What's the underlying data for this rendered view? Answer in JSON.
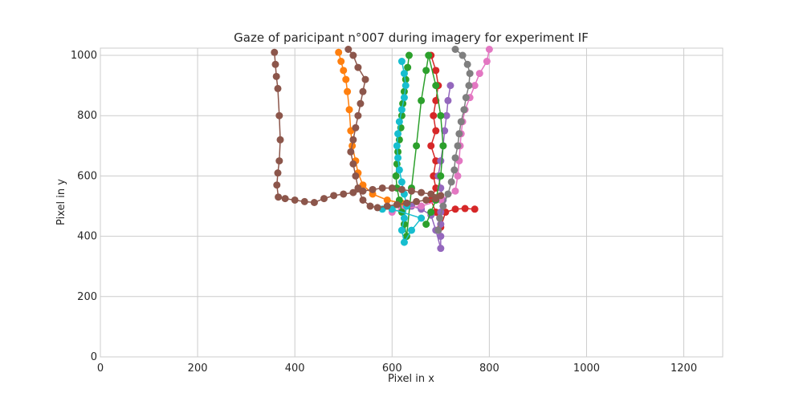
{
  "chart_data": {
    "type": "scatter",
    "title": "Gaze of paricipant n°007 during imagery for experiment IF",
    "xlabel": "Pixel in x",
    "ylabel": "Pixel in y",
    "xlim": [
      0,
      1280
    ],
    "ylim": [
      0,
      1024
    ],
    "xticks": [
      "0",
      "200",
      "400",
      "600",
      "800",
      "1000",
      "1200"
    ],
    "yticks": [
      "0",
      "200",
      "400",
      "600",
      "800",
      "1000"
    ],
    "grid": true,
    "legend": "none",
    "colors": [
      "#ff7f0e",
      "#d62728",
      "#9467bd",
      "#e377c2",
      "#7f7f7f",
      "#2ca02c",
      "#17becf",
      "#8c564b"
    ],
    "series": [
      {
        "color": "#ff7f0e",
        "points": [
          [
            490,
            1010
          ],
          [
            495,
            980
          ],
          [
            500,
            950
          ],
          [
            505,
            920
          ],
          [
            508,
            880
          ],
          [
            512,
            820
          ],
          [
            515,
            750
          ],
          [
            518,
            700
          ],
          [
            525,
            650
          ],
          [
            530,
            610
          ],
          [
            540,
            570
          ],
          [
            560,
            540
          ],
          [
            590,
            520
          ],
          [
            620,
            510
          ],
          [
            640,
            500
          ]
        ]
      },
      {
        "color": "#d62728",
        "points": [
          [
            680,
            1000
          ],
          [
            690,
            950
          ],
          [
            695,
            900
          ],
          [
            690,
            850
          ],
          [
            685,
            800
          ],
          [
            690,
            750
          ],
          [
            680,
            700
          ],
          [
            690,
            650
          ],
          [
            685,
            600
          ],
          [
            690,
            560
          ],
          [
            680,
            520
          ],
          [
            690,
            480
          ],
          [
            700,
            430
          ],
          [
            710,
            480
          ],
          [
            730,
            490
          ],
          [
            750,
            492
          ],
          [
            770,
            490
          ]
        ]
      },
      {
        "color": "#9467bd",
        "points": [
          [
            720,
            900
          ],
          [
            715,
            850
          ],
          [
            712,
            800
          ],
          [
            708,
            750
          ],
          [
            705,
            700
          ],
          [
            700,
            650
          ],
          [
            695,
            600
          ],
          [
            700,
            560
          ],
          [
            705,
            520
          ],
          [
            700,
            480
          ],
          [
            700,
            440
          ],
          [
            700,
            400
          ],
          [
            700,
            360
          ],
          [
            690,
            420
          ],
          [
            680,
            470
          ],
          [
            660,
            490
          ],
          [
            640,
            500
          ]
        ]
      },
      {
        "color": "#e377c2",
        "points": [
          [
            800,
            1020
          ],
          [
            795,
            980
          ],
          [
            780,
            940
          ],
          [
            770,
            900
          ],
          [
            760,
            860
          ],
          [
            750,
            820
          ],
          [
            745,
            780
          ],
          [
            742,
            740
          ],
          [
            740,
            700
          ],
          [
            738,
            650
          ],
          [
            735,
            600
          ],
          [
            730,
            550
          ],
          [
            700,
            520
          ],
          [
            660,
            500
          ],
          [
            620,
            490
          ],
          [
            600,
            480
          ]
        ]
      },
      {
        "color": "#7f7f7f",
        "points": [
          [
            730,
            1020
          ],
          [
            745,
            1000
          ],
          [
            755,
            970
          ],
          [
            760,
            940
          ],
          [
            758,
            900
          ],
          [
            752,
            860
          ],
          [
            748,
            820
          ],
          [
            742,
            780
          ],
          [
            738,
            740
          ],
          [
            735,
            700
          ],
          [
            730,
            660
          ],
          [
            728,
            620
          ],
          [
            722,
            580
          ],
          [
            715,
            540
          ],
          [
            705,
            500
          ],
          [
            698,
            460
          ],
          [
            695,
            420
          ]
        ]
      },
      {
        "color": "#2ca02c",
        "points": [
          [
            635,
            1000
          ],
          [
            632,
            960
          ],
          [
            628,
            920
          ],
          [
            625,
            880
          ],
          [
            622,
            840
          ],
          [
            620,
            800
          ],
          [
            618,
            760
          ],
          [
            615,
            720
          ],
          [
            612,
            680
          ],
          [
            610,
            640
          ],
          [
            608,
            600
          ],
          [
            610,
            560
          ],
          [
            615,
            520
          ],
          [
            620,
            480
          ],
          [
            625,
            440
          ],
          [
            630,
            400
          ],
          [
            640,
            560
          ],
          [
            650,
            700
          ],
          [
            660,
            850
          ],
          [
            670,
            950
          ],
          [
            675,
            1000
          ],
          [
            690,
            900
          ],
          [
            700,
            800
          ],
          [
            705,
            700
          ],
          [
            700,
            600
          ],
          [
            690,
            520
          ],
          [
            680,
            480
          ],
          [
            670,
            440
          ]
        ]
      },
      {
        "color": "#17becf",
        "points": [
          [
            620,
            980
          ],
          [
            625,
            940
          ],
          [
            628,
            900
          ],
          [
            625,
            860
          ],
          [
            620,
            820
          ],
          [
            615,
            780
          ],
          [
            612,
            740
          ],
          [
            610,
            700
          ],
          [
            612,
            660
          ],
          [
            615,
            620
          ],
          [
            620,
            580
          ],
          [
            625,
            540
          ],
          [
            630,
            500
          ],
          [
            625,
            460
          ],
          [
            620,
            420
          ],
          [
            625,
            380
          ],
          [
            640,
            420
          ],
          [
            660,
            460
          ],
          [
            600,
            490
          ],
          [
            580,
            490
          ]
        ]
      },
      {
        "color": "#8c564b",
        "points": [
          [
            358,
            1010
          ],
          [
            360,
            970
          ],
          [
            362,
            930
          ],
          [
            365,
            890
          ],
          [
            368,
            800
          ],
          [
            370,
            720
          ],
          [
            368,
            650
          ],
          [
            365,
            610
          ],
          [
            363,
            570
          ],
          [
            366,
            530
          ],
          [
            380,
            525
          ],
          [
            400,
            520
          ],
          [
            420,
            515
          ],
          [
            440,
            512
          ],
          [
            460,
            525
          ],
          [
            480,
            535
          ],
          [
            500,
            540
          ],
          [
            520,
            545
          ],
          [
            540,
            550
          ],
          [
            560,
            555
          ],
          [
            580,
            560
          ],
          [
            600,
            560
          ],
          [
            620,
            555
          ],
          [
            640,
            550
          ],
          [
            660,
            545
          ],
          [
            680,
            540
          ],
          [
            700,
            535
          ],
          [
            690,
            525
          ],
          [
            670,
            520
          ],
          [
            650,
            515
          ],
          [
            630,
            510
          ],
          [
            610,
            505
          ],
          [
            590,
            500
          ],
          [
            570,
            495
          ],
          [
            555,
            500
          ],
          [
            540,
            520
          ],
          [
            530,
            560
          ],
          [
            525,
            600
          ],
          [
            520,
            640
          ],
          [
            515,
            680
          ],
          [
            520,
            720
          ],
          [
            525,
            760
          ],
          [
            530,
            800
          ],
          [
            535,
            840
          ],
          [
            540,
            880
          ],
          [
            545,
            920
          ],
          [
            530,
            960
          ],
          [
            520,
            1000
          ],
          [
            510,
            1020
          ]
        ]
      }
    ]
  }
}
